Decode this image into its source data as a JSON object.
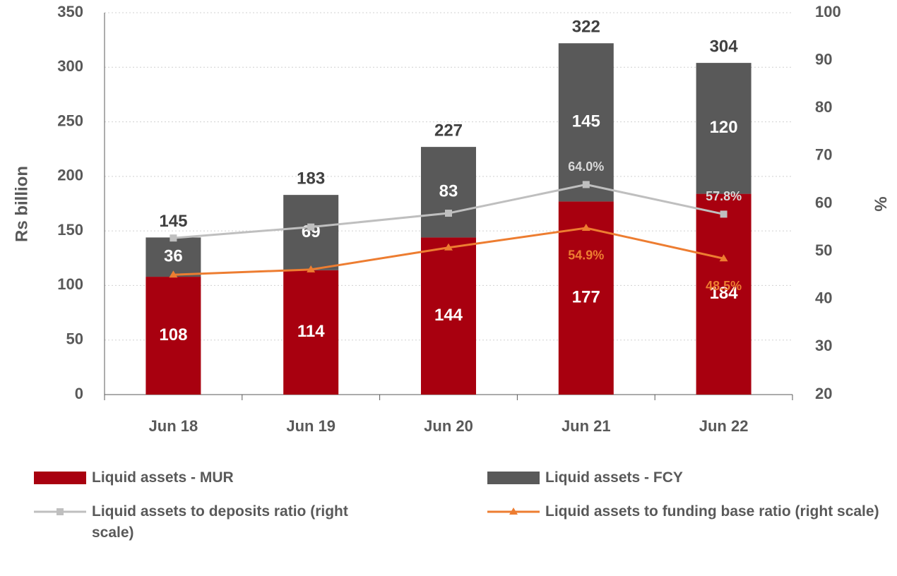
{
  "chart_data": {
    "type": "bar",
    "stacked": true,
    "categories": [
      "Jun 18",
      "Jun 19",
      "Jun 20",
      "Jun 21",
      "Jun 22"
    ],
    "y_label": "Rs billion",
    "y2_label": "%",
    "ylim": [
      0,
      350
    ],
    "yticks": [
      0,
      50,
      100,
      150,
      200,
      250,
      300,
      350
    ],
    "y2lim": [
      20,
      100
    ],
    "y2ticks": [
      20,
      30,
      40,
      50,
      60,
      70,
      80,
      90,
      100
    ],
    "grid": true,
    "series": [
      {
        "name": "Liquid assets - MUR",
        "color": "#a8000f",
        "values": [
          108,
          114,
          144,
          177,
          184
        ]
      },
      {
        "name": "Liquid assets - FCY",
        "color": "#595959",
        "values": [
          36,
          69,
          83,
          145,
          120
        ]
      },
      {
        "name": "Liquid assets to deposits ratio (right scale)",
        "type": "line",
        "marker": "square",
        "axis": "y2",
        "color": "#bfbfbf",
        "label_color": "#d9d9d9",
        "values": [
          52.8,
          55.1,
          58.0,
          64.0,
          57.8
        ],
        "value_labels": [
          null,
          null,
          null,
          "64.0%",
          "57.8%"
        ]
      },
      {
        "name": "Liquid assets to funding base ratio (right scale)",
        "type": "line",
        "marker": "triangle",
        "axis": "y2",
        "color": "#ed7d31",
        "label_color": "#ed7d31",
        "values": [
          45.1,
          46.2,
          50.8,
          54.9,
          48.5
        ],
        "value_labels": [
          null,
          null,
          null,
          "54.9%",
          "48.5%"
        ]
      }
    ],
    "totals": [
      145,
      183,
      227,
      322,
      304
    ]
  }
}
